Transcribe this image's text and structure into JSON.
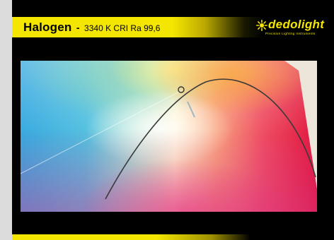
{
  "header": {
    "title": "Halogen",
    "separator": "-",
    "spec": "3340 K CRI Ra 99,6"
  },
  "logo": {
    "brand": "dedolight",
    "tagline": "Precision Lighting Instruments",
    "icon": "sun-icon"
  },
  "colors": {
    "accent_yellow": "#f4e600",
    "background": "#000000",
    "border_gray": "#dcdcdc"
  }
}
